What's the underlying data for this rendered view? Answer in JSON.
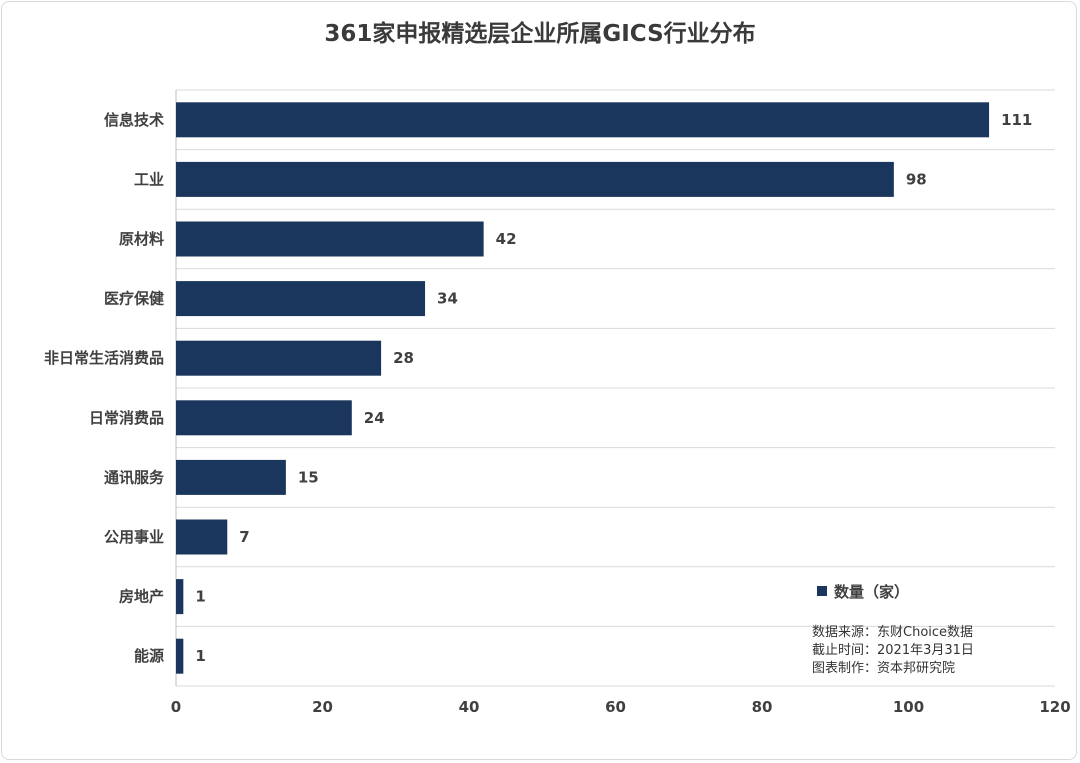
{
  "chart_data": {
    "type": "bar",
    "orientation": "horizontal",
    "title": "361家申报精选层企业所属GICS行业分布",
    "categories": [
      "信息技术",
      "工业",
      "原材料",
      "医疗保健",
      "非日常生活消费品",
      "日常消费品",
      "通讯服务",
      "公用事业",
      "房地产",
      "能源"
    ],
    "series": [
      {
        "name": "数量（家）",
        "values": [
          111,
          98,
          42,
          34,
          28,
          24,
          15,
          7,
          1,
          1
        ]
      }
    ],
    "xlim": [
      0,
      120
    ],
    "xticks": [
      0,
      20,
      40,
      60,
      80,
      100,
      120
    ],
    "grid": "horizontal lines between categories",
    "legend_position": "bottom-right",
    "colors": {
      "bar": "#1b365d"
    }
  },
  "notes": {
    "source": "数据来源：东财Choice数据",
    "cutoff": "截止时间：2021年3月31日",
    "maker": "图表制作：资本邦研究院"
  }
}
